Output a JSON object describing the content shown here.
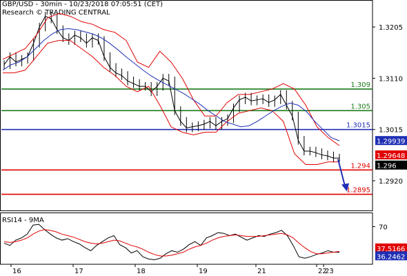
{
  "header": {
    "line1": "GBP/USD - 30min - 10/23/2018 07:05:51 (CET)",
    "line2": "Research © TRADING CENTRAL"
  },
  "chart_data": [
    {
      "type": "line",
      "panel": "price",
      "subtype": "ohlc-bars",
      "xlabel": "",
      "ylabel": "",
      "ylim": [
        1.2865,
        1.3255
      ],
      "x_ticks": [
        "16",
        "17",
        "18",
        "19",
        "21",
        "22",
        "23"
      ],
      "y_ticks": [
        1.3205,
        1.311,
        1.3015,
        1.292
      ],
      "y_tick_labels": [
        "1.3205",
        "1.3110",
        "1.3015",
        "1.2920"
      ],
      "levels": [
        {
          "value": 1.309,
          "label": "1.309",
          "color": "#1a7a1a"
        },
        {
          "value": 1.305,
          "label": "1.305",
          "color": "#1a7a1a"
        },
        {
          "value": 1.3015,
          "label": "1.3015",
          "color": "#1f2fb5"
        },
        {
          "value": 1.294,
          "label": "1.294",
          "color": "#e00000"
        },
        {
          "value": 1.2895,
          "label": "1.2895",
          "color": "#e00000"
        }
      ],
      "price_tags": [
        {
          "value": 1.29939,
          "label": "1.29939",
          "color": "#1f2fb5"
        },
        {
          "value": 1.29648,
          "label": "1.29648",
          "color": "#e00000"
        },
        {
          "value": 1.296,
          "label": "1.296",
          "color": "#000000"
        }
      ],
      "close_series": [
        1.3135,
        1.315,
        1.314,
        1.3145,
        1.315,
        1.3175,
        1.3205,
        1.3225,
        1.322,
        1.32,
        1.3185,
        1.318,
        1.319,
        1.3185,
        1.3175,
        1.3185,
        1.318,
        1.315,
        1.313,
        1.312,
        1.3115,
        1.3105,
        1.31,
        1.3095,
        1.3095,
        1.3085,
        1.3095,
        1.311,
        1.3105,
        1.305,
        1.303,
        1.3018,
        1.302,
        1.3022,
        1.3025,
        1.303,
        1.3022,
        1.303,
        1.3035,
        1.3055,
        1.307,
        1.3075,
        1.3068,
        1.307,
        1.3072,
        1.3065,
        1.307,
        1.308,
        1.306,
        1.304,
        1.2995,
        1.2975,
        1.2975,
        1.2972,
        1.2968,
        1.2966,
        1.2962,
        1.2962
      ],
      "bb_middle": [
        1.3125,
        1.3135,
        1.314,
        1.315,
        1.3165,
        1.318,
        1.3192,
        1.32,
        1.3202,
        1.32,
        1.3196,
        1.3192,
        1.3185,
        1.3175,
        1.3163,
        1.315,
        1.3138,
        1.3126,
        1.3115,
        1.3106,
        1.3098,
        1.309,
        1.3082,
        1.3072,
        1.3062,
        1.305,
        1.304,
        1.303,
        1.3025,
        1.302,
        1.3022,
        1.303,
        1.304,
        1.305,
        1.3058,
        1.3064,
        1.306,
        1.3048,
        1.303,
        1.3015,
        1.3,
        1.2994
      ],
      "bb_upper": [
        1.3145,
        1.3155,
        1.3165,
        1.319,
        1.3222,
        1.323,
        1.3225,
        1.3215,
        1.321,
        1.32,
        1.3195,
        1.318,
        1.314,
        1.313,
        1.316,
        1.314,
        1.311,
        1.307,
        1.304,
        1.304,
        1.3065,
        1.308,
        1.308,
        1.3085,
        1.309,
        1.31,
        1.309,
        1.306,
        1.302,
        1.3,
        1.2985
      ],
      "bb_lower": [
        1.312,
        1.312,
        1.3125,
        1.315,
        1.3175,
        1.318,
        1.318,
        1.3165,
        1.315,
        1.313,
        1.3115,
        1.3095,
        1.3085,
        1.3095,
        1.306,
        1.302,
        1.301,
        1.3005,
        1.301,
        1.301,
        1.303,
        1.3045,
        1.305,
        1.3055,
        1.305,
        1.303,
        1.297,
        1.295,
        1.295,
        1.2955,
        1.2955
      ],
      "forecast_arrow": {
        "from": 1.296,
        "to": 1.2895,
        "color": "#1f2fb5"
      }
    },
    {
      "type": "line",
      "panel": "indicator",
      "title": "RSI14 - 9MA",
      "ylim": [
        20,
        85
      ],
      "y_ticks": [
        70
      ],
      "y_tick_labels": [
        "70"
      ],
      "series": [
        {
          "name": "RSI14",
          "color": "#000000",
          "values": [
            48,
            45,
            52,
            55,
            60,
            72,
            73,
            66,
            60,
            55,
            52,
            54,
            50,
            47,
            42,
            38,
            45,
            50,
            55,
            58,
            46,
            42,
            35,
            38,
            30,
            27,
            26,
            28,
            34,
            38,
            36,
            40,
            46,
            50,
            45,
            55,
            58,
            62,
            61,
            58,
            60,
            56,
            52,
            55,
            58,
            57,
            60,
            62,
            65,
            58,
            45,
            30,
            28,
            30,
            33,
            35,
            38,
            36,
            36
          ]
        },
        {
          "name": "9MA",
          "color": "#e00000",
          "values": [
            50,
            49,
            50,
            52,
            55,
            60,
            64,
            66,
            65,
            63,
            60,
            58,
            56,
            53,
            50,
            48,
            47,
            48,
            50,
            52,
            51,
            48,
            45,
            43,
            40,
            36,
            33,
            31,
            31,
            32,
            34,
            36,
            40,
            43,
            45,
            48,
            52,
            55,
            57,
            58,
            59,
            58,
            57,
            57,
            57,
            58,
            59,
            60,
            61,
            59,
            55,
            48,
            42,
            37,
            34,
            34,
            35,
            36,
            37
          ]
        }
      ],
      "value_tags": [
        {
          "value": 37.5166,
          "label": "37.5166",
          "color": "#e00000"
        },
        {
          "value": 36.2462,
          "label": "36.2462",
          "color": "#1f2fb5"
        }
      ]
    }
  ]
}
